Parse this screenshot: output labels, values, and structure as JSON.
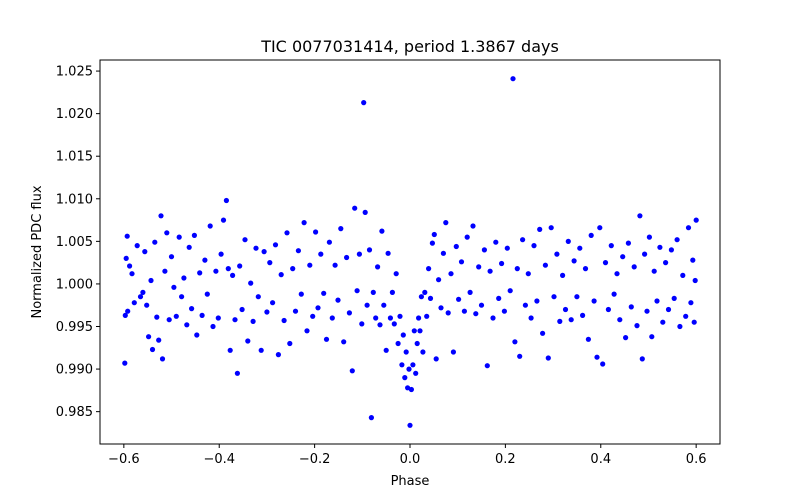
{
  "chart_data": {
    "type": "scatter",
    "title": "TIC 0077031414, period 1.3867 days",
    "xlabel": "Phase",
    "ylabel": "Normalized PDC flux",
    "xlim": [
      -0.65,
      0.65
    ],
    "ylim": [
      0.9812,
      1.0263
    ],
    "xticks": [
      -0.6,
      -0.4,
      -0.2,
      0.0,
      0.2,
      0.4,
      0.6
    ],
    "xtick_labels": [
      "−0.6",
      "−0.4",
      "−0.2",
      "0.0",
      "0.2",
      "0.4",
      "0.6"
    ],
    "yticks": [
      0.985,
      0.99,
      0.995,
      1.0,
      1.005,
      1.01,
      1.015,
      1.02,
      1.025
    ],
    "ytick_labels": [
      "0.985",
      "0.990",
      "0.995",
      "1.000",
      "1.005",
      "1.010",
      "1.015",
      "1.020",
      "1.025"
    ],
    "grid": false,
    "marker_color": "#0000ff",
    "points": [
      [
        -0.598,
        0.9907
      ],
      [
        -0.597,
        0.9963
      ],
      [
        -0.595,
        1.003
      ],
      [
        -0.593,
        1.0056
      ],
      [
        -0.592,
        0.9968
      ],
      [
        -0.588,
        1.0021
      ],
      [
        -0.583,
        1.0012
      ],
      [
        -0.578,
        0.9978
      ],
      [
        -0.572,
        1.0045
      ],
      [
        -0.565,
        0.9985
      ],
      [
        -0.56,
        0.999
      ],
      [
        -0.556,
        1.0038
      ],
      [
        -0.552,
        0.9975
      ],
      [
        -0.548,
        0.9938
      ],
      [
        -0.543,
        1.0004
      ],
      [
        -0.54,
        0.9923
      ],
      [
        -0.535,
        1.0049
      ],
      [
        -0.531,
        0.9961
      ],
      [
        -0.527,
        0.9934
      ],
      [
        -0.522,
        1.008
      ],
      [
        -0.519,
        0.9912
      ],
      [
        -0.514,
        1.0015
      ],
      [
        -0.51,
        1.006
      ],
      [
        -0.505,
        0.9958
      ],
      [
        -0.5,
        1.0032
      ],
      [
        -0.495,
        0.9996
      ],
      [
        -0.49,
        0.9962
      ],
      [
        -0.484,
        1.0055
      ],
      [
        -0.479,
        0.9985
      ],
      [
        -0.474,
        1.0007
      ],
      [
        -0.468,
        0.9952
      ],
      [
        -0.463,
        1.0043
      ],
      [
        -0.458,
        0.9971
      ],
      [
        -0.452,
        1.0057
      ],
      [
        -0.447,
        0.994
      ],
      [
        -0.441,
        1.0013
      ],
      [
        -0.436,
        0.9963
      ],
      [
        -0.43,
        1.0028
      ],
      [
        -0.425,
        0.9988
      ],
      [
        -0.419,
        1.0068
      ],
      [
        -0.413,
        0.995
      ],
      [
        -0.407,
        1.0015
      ],
      [
        -0.402,
        0.996
      ],
      [
        -0.396,
        1.0035
      ],
      [
        -0.391,
        1.0075
      ],
      [
        -0.385,
        1.0098
      ],
      [
        -0.381,
        1.0018
      ],
      [
        -0.377,
        0.9922
      ],
      [
        -0.372,
        1.001
      ],
      [
        -0.367,
        0.9958
      ],
      [
        -0.362,
        0.9895
      ],
      [
        -0.357,
        1.0021
      ],
      [
        -0.352,
        0.997
      ],
      [
        -0.346,
        1.0052
      ],
      [
        -0.34,
        0.9933
      ],
      [
        -0.334,
        1.0001
      ],
      [
        -0.329,
        0.9956
      ],
      [
        -0.323,
        1.0042
      ],
      [
        -0.318,
        0.9985
      ],
      [
        -0.312,
        0.9922
      ],
      [
        -0.306,
        1.0038
      ],
      [
        -0.3,
        0.9967
      ],
      [
        -0.294,
        1.0025
      ],
      [
        -0.288,
        0.9978
      ],
      [
        -0.282,
        1.0046
      ],
      [
        -0.276,
        0.9917
      ],
      [
        -0.27,
        1.0011
      ],
      [
        -0.264,
        0.9957
      ],
      [
        -0.258,
        1.006
      ],
      [
        -0.252,
        0.993
      ],
      [
        -0.246,
        1.0018
      ],
      [
        -0.24,
        0.9968
      ],
      [
        -0.234,
        1.0039
      ],
      [
        -0.228,
        0.9988
      ],
      [
        -0.222,
        1.0072
      ],
      [
        -0.216,
        0.9945
      ],
      [
        -0.21,
        1.0022
      ],
      [
        -0.204,
        0.9962
      ],
      [
        -0.198,
        1.0061
      ],
      [
        -0.193,
        0.9972
      ],
      [
        -0.187,
        1.0035
      ],
      [
        -0.181,
        0.9989
      ],
      [
        -0.175,
        0.9935
      ],
      [
        -0.169,
        1.0049
      ],
      [
        -0.163,
        0.996
      ],
      [
        -0.157,
        1.0022
      ],
      [
        -0.151,
        0.9981
      ],
      [
        -0.145,
        1.0065
      ],
      [
        -0.139,
        0.9932
      ],
      [
        -0.133,
        1.0031
      ],
      [
        -0.127,
        0.9966
      ],
      [
        -0.121,
        0.9898
      ],
      [
        -0.116,
        1.0089
      ],
      [
        -0.111,
        0.9992
      ],
      [
        -0.106,
        1.0035
      ],
      [
        -0.101,
        0.9953
      ],
      [
        -0.097,
        1.0213
      ],
      [
        -0.094,
        1.0084
      ],
      [
        -0.09,
        0.9975
      ],
      [
        -0.085,
        1.004
      ],
      [
        -0.081,
        0.9843
      ],
      [
        -0.077,
        0.999
      ],
      [
        -0.072,
        0.996
      ],
      [
        -0.068,
        1.002
      ],
      [
        -0.063,
        0.9952
      ],
      [
        -0.059,
        1.0062
      ],
      [
        -0.055,
        0.9975
      ],
      [
        -0.05,
        0.9922
      ],
      [
        -0.046,
        1.0036
      ],
      [
        -0.041,
        0.996
      ],
      [
        -0.037,
        0.999
      ],
      [
        -0.033,
        0.9953
      ],
      [
        -0.029,
        1.0012
      ],
      [
        -0.025,
        0.993
      ],
      [
        -0.021,
        0.9962
      ],
      [
        -0.017,
        0.9905
      ],
      [
        -0.014,
        0.994
      ],
      [
        -0.011,
        0.989
      ],
      [
        -0.008,
        0.992
      ],
      [
        -0.005,
        0.9878
      ],
      [
        -0.002,
        0.99
      ],
      [
        0.0,
        0.9834
      ],
      [
        0.003,
        0.9876
      ],
      [
        0.006,
        0.9905
      ],
      [
        0.009,
        0.9945
      ],
      [
        0.012,
        0.9895
      ],
      [
        0.015,
        0.993
      ],
      [
        0.018,
        0.996
      ],
      [
        0.021,
        0.9945
      ],
      [
        0.024,
        0.9985
      ],
      [
        0.027,
        0.992
      ],
      [
        0.031,
        0.999
      ],
      [
        0.035,
        0.9962
      ],
      [
        0.039,
        1.0018
      ],
      [
        0.043,
        0.9983
      ],
      [
        0.047,
        1.0048
      ],
      [
        0.051,
        1.0058
      ],
      [
        0.055,
        0.9912
      ],
      [
        0.06,
        1.0005
      ],
      [
        0.065,
        0.9972
      ],
      [
        0.07,
        1.0036
      ],
      [
        0.075,
        1.0072
      ],
      [
        0.08,
        0.9966
      ],
      [
        0.086,
        1.0012
      ],
      [
        0.091,
        0.992
      ],
      [
        0.097,
        1.0044
      ],
      [
        0.102,
        0.9982
      ],
      [
        0.108,
        1.0026
      ],
      [
        0.114,
        0.9968
      ],
      [
        0.12,
        1.0055
      ],
      [
        0.126,
        0.999
      ],
      [
        0.132,
        1.0068
      ],
      [
        0.138,
        0.9965
      ],
      [
        0.144,
        1.002
      ],
      [
        0.15,
        0.9975
      ],
      [
        0.156,
        1.004
      ],
      [
        0.162,
        0.9904
      ],
      [
        0.168,
        1.0015
      ],
      [
        0.174,
        0.996
      ],
      [
        0.18,
        1.0049
      ],
      [
        0.186,
        0.9983
      ],
      [
        0.192,
        1.0024
      ],
      [
        0.198,
        0.9968
      ],
      [
        0.204,
        1.0042
      ],
      [
        0.21,
        0.9992
      ],
      [
        0.216,
        1.0241
      ],
      [
        0.22,
        0.9932
      ],
      [
        0.225,
        1.0018
      ],
      [
        0.23,
        0.9915
      ],
      [
        0.236,
        1.0052
      ],
      [
        0.242,
        0.9975
      ],
      [
        0.248,
        1.0012
      ],
      [
        0.254,
        0.996
      ],
      [
        0.26,
        1.0045
      ],
      [
        0.266,
        0.998
      ],
      [
        0.272,
        1.0064
      ],
      [
        0.278,
        0.9942
      ],
      [
        0.284,
        1.0022
      ],
      [
        0.29,
        0.9913
      ],
      [
        0.296,
        1.0066
      ],
      [
        0.302,
        0.9985
      ],
      [
        0.308,
        1.0035
      ],
      [
        0.314,
        0.9956
      ],
      [
        0.32,
        1.001
      ],
      [
        0.326,
        0.997
      ],
      [
        0.332,
        1.005
      ],
      [
        0.338,
        0.9958
      ],
      [
        0.344,
        1.0027
      ],
      [
        0.35,
        0.9985
      ],
      [
        0.356,
        1.0042
      ],
      [
        0.362,
        0.9963
      ],
      [
        0.368,
        1.0018
      ],
      [
        0.374,
        0.9935
      ],
      [
        0.38,
        1.0057
      ],
      [
        0.386,
        0.998
      ],
      [
        0.392,
        0.9914
      ],
      [
        0.398,
        1.0066
      ],
      [
        0.404,
        0.9906
      ],
      [
        0.41,
        1.0025
      ],
      [
        0.416,
        0.997
      ],
      [
        0.422,
        1.0045
      ],
      [
        0.428,
        0.9988
      ],
      [
        0.434,
        1.0012
      ],
      [
        0.44,
        0.9958
      ],
      [
        0.446,
        1.0032
      ],
      [
        0.452,
        0.9937
      ],
      [
        0.458,
        1.0048
      ],
      [
        0.464,
        0.9973
      ],
      [
        0.47,
        1.002
      ],
      [
        0.476,
        0.9951
      ],
      [
        0.482,
        1.008
      ],
      [
        0.487,
        0.9912
      ],
      [
        0.492,
        1.0035
      ],
      [
        0.497,
        0.9968
      ],
      [
        0.502,
        1.0055
      ],
      [
        0.507,
        0.9938
      ],
      [
        0.512,
        1.0015
      ],
      [
        0.518,
        0.998
      ],
      [
        0.524,
        1.0043
      ],
      [
        0.53,
        0.9955
      ],
      [
        0.536,
        1.0025
      ],
      [
        0.542,
        0.997
      ],
      [
        0.548,
        1.004
      ],
      [
        0.554,
        0.9983
      ],
      [
        0.56,
        1.0052
      ],
      [
        0.566,
        0.995
      ],
      [
        0.572,
        1.001
      ],
      [
        0.578,
        0.9962
      ],
      [
        0.584,
        1.0066
      ],
      [
        0.589,
        0.9978
      ],
      [
        0.593,
        1.0028
      ],
      [
        0.596,
        0.9955
      ],
      [
        0.598,
        1.0004
      ],
      [
        0.6,
        1.0075
      ]
    ]
  }
}
